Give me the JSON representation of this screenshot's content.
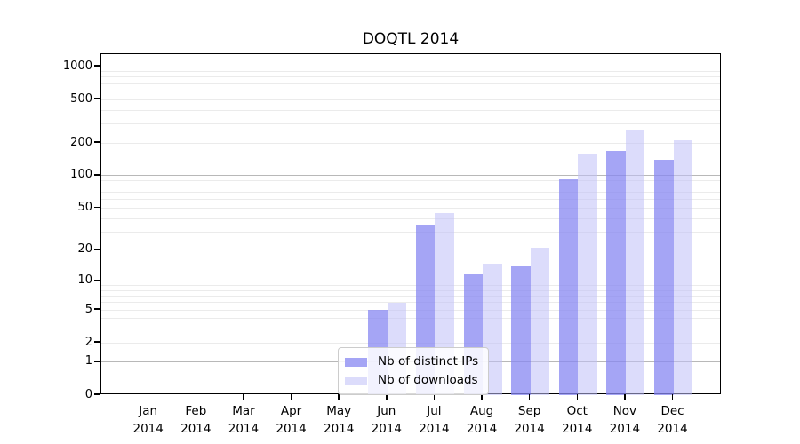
{
  "title": "DOQTL 2014",
  "chart_data": {
    "type": "bar",
    "title": "DOQTL 2014",
    "categories": [
      "Jan",
      "Feb",
      "Mar",
      "Apr",
      "May",
      "Jun",
      "Jul",
      "Aug",
      "Sep",
      "Oct",
      "Nov",
      "Dec"
    ],
    "category_year": "2014",
    "series": [
      {
        "name": "Nb of distinct IPs",
        "color": "#a5a5f5",
        "color_rgba": "rgba(135,135,242,0.75)",
        "values": [
          0,
          0,
          0,
          0,
          0,
          5,
          35,
          12,
          14,
          93,
          170,
          140
        ]
      },
      {
        "name": "Nb of downloads",
        "color": "#dcdcfb",
        "color_rgba": "rgba(191,191,248,0.55)",
        "values": [
          0,
          0,
          0,
          0,
          0,
          6,
          45,
          15,
          21,
          160,
          265,
          213
        ]
      }
    ],
    "y_axis": {
      "scale": "symlog",
      "range": [
        0,
        1000
      ],
      "tick_labels": [
        0,
        1,
        2,
        5,
        10,
        20,
        50,
        100,
        200,
        500,
        1000
      ],
      "major_gridlines": [
        1,
        10,
        100,
        1000
      ],
      "minor_gridlines": [
        2,
        3,
        4,
        5,
        6,
        7,
        8,
        9,
        20,
        30,
        40,
        50,
        60,
        70,
        80,
        90,
        200,
        300,
        400,
        500,
        600,
        700,
        800,
        900
      ]
    },
    "xlabel": "",
    "ylabel": "",
    "grid": true,
    "legend_position": "inside-bottom-center"
  },
  "colors": {
    "background": "#ffffff",
    "axis": "#000000",
    "major_grid": "#b8b8b8",
    "minor_grid": "#ebebeb",
    "legend_border": "#cccccc",
    "ips_bar": "#a5a5f5",
    "downloads_bar": "#dcdcfb"
  }
}
